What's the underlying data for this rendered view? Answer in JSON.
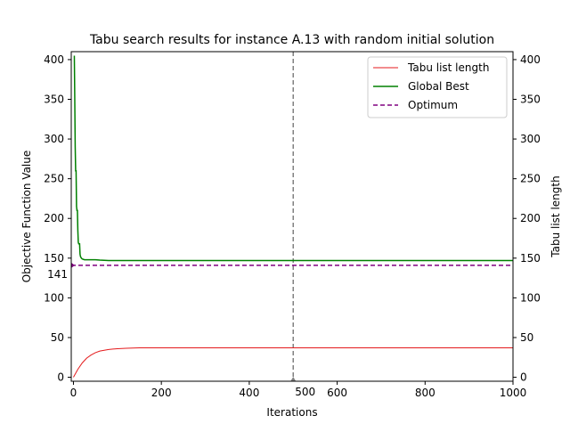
{
  "chart_data": {
    "type": "line",
    "title": "Tabu search results for instance A.13 with random initial solution",
    "xlabel": "Iterations",
    "ylabel": "Objective Function Value",
    "ylabel_right": "Tabu list length",
    "xlim": [
      -5,
      1000
    ],
    "ylim": [
      -5,
      410
    ],
    "xticks": [
      0,
      200,
      400,
      600,
      800,
      1000
    ],
    "yticks": [
      0,
      50,
      100,
      150,
      200,
      250,
      300,
      350,
      400
    ],
    "grid": false,
    "legend_position": "top-right",
    "series": [
      {
        "name": "Tabu list length",
        "color": "#e41a1c",
        "linestyle": "solid",
        "x": [
          0,
          10,
          20,
          30,
          40,
          50,
          60,
          70,
          80,
          100,
          120,
          150,
          200,
          300,
          500,
          700,
          1000
        ],
        "y": [
          0,
          10,
          18,
          24,
          28,
          31,
          33,
          34,
          35,
          36,
          36.5,
          37,
          37,
          37,
          37,
          37,
          37
        ]
      },
      {
        "name": "Global Best",
        "color": "#008000",
        "linestyle": "solid",
        "x": [
          2,
          3,
          4,
          5,
          6,
          7,
          8,
          9,
          10,
          11,
          12,
          13,
          14,
          15,
          16,
          17,
          18,
          20,
          25,
          30,
          40,
          50,
          60,
          80,
          100,
          200,
          500,
          1000
        ],
        "y": [
          405,
          350,
          290,
          260,
          260,
          215,
          210,
          210,
          185,
          170,
          168,
          168,
          168,
          155,
          152,
          151,
          150,
          149,
          148,
          148,
          148,
          148,
          147.5,
          147,
          147,
          147,
          147,
          147
        ]
      },
      {
        "name": "Optimum",
        "color": "#800080",
        "linestyle": "dashed",
        "x": [
          -5,
          1000
        ],
        "y": [
          141,
          141
        ]
      }
    ],
    "vline": {
      "x": 500,
      "label": "500",
      "color": "#808080"
    },
    "hline_label": "141"
  }
}
